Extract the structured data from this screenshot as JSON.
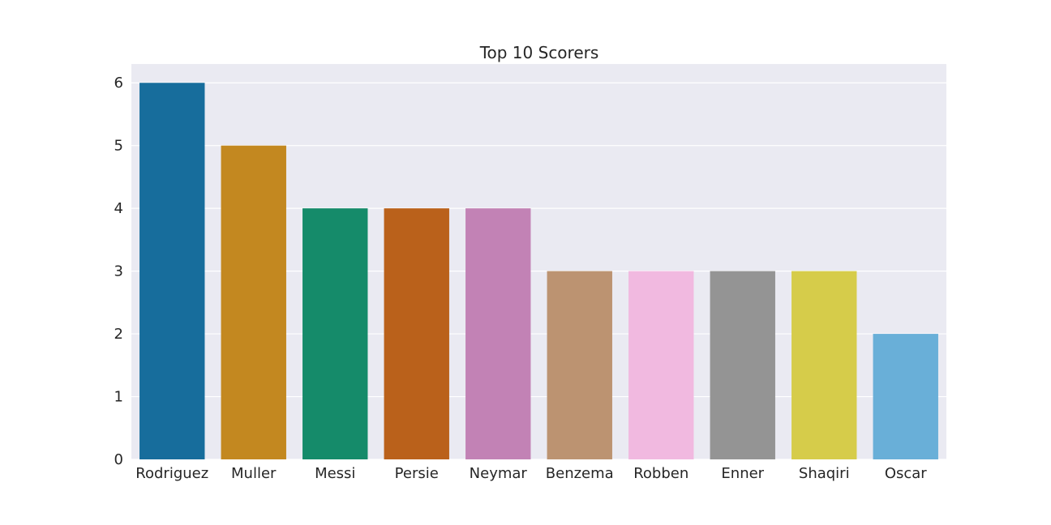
{
  "chart_data": {
    "type": "bar",
    "title": "Top 10 Scorers",
    "xlabel": "",
    "ylabel": "",
    "categories": [
      "Rodriguez",
      "Muller",
      "Messi",
      "Persie",
      "Neymar",
      "Benzema",
      "Robben",
      "Enner",
      "Shaqiri",
      "Oscar"
    ],
    "values": [
      6,
      5,
      4,
      4,
      4,
      3,
      3,
      3,
      3,
      2
    ],
    "ylim": [
      0,
      6.3
    ],
    "yticks": [
      0,
      1,
      2,
      3,
      4,
      5,
      6
    ],
    "grid": true,
    "legend": "none",
    "background": "#eaeaf2",
    "colors": [
      "#176d9c",
      "#c38820",
      "#158b6a",
      "#ba611b",
      "#c282b5",
      "#bc9371",
      "#f1b9e0",
      "#949494",
      "#d6cc4a",
      "#69afd8"
    ]
  }
}
